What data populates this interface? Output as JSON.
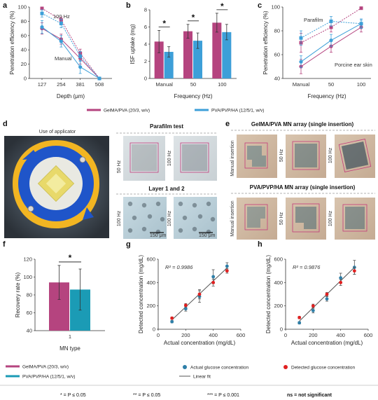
{
  "panels": {
    "a": "a",
    "b": "b",
    "c": "c",
    "d": "d",
    "e": "e",
    "f": "f",
    "g": "g",
    "h": "h"
  },
  "colors": {
    "gelma": "#b5447f",
    "pva": "#3d9fd8",
    "pva_dark": "#1b7fae",
    "blue_point": "#2e7fa8",
    "red_point": "#e02020"
  },
  "legend_top": {
    "gelma": "GelMA/PVA (20/3, w/v)",
    "pva": "PVA/PVP/HA (12/5/1, w/v)"
  },
  "legend_f": {
    "gelma": "GelMA/PVA (20/3, w/v)",
    "pva": "PVA/PVP/HA (12/5/1, w/v)"
  },
  "legend_gh": {
    "actual": "Actual glucose concentration",
    "detected": "Detected glucose concentration",
    "fit": "Linear fit"
  },
  "significance": {
    "one": "* = P ≤ 0.05",
    "two": "** = P ≤ 0.05",
    "three": "*** = P ≤ 0.001",
    "ns": "ns = not significant"
  },
  "photos_d": {
    "applicator_title": "Use of applicator",
    "parafilm_title": "Parafilm test",
    "layer_title": "Layer 1 and 2",
    "p50": "50 Hz",
    "p100": "100 Hz",
    "l100a": "100 Hz",
    "l100b": "100 Hz",
    "scale1": "150 μm",
    "scale2": "150 μm"
  },
  "photos_e": {
    "gelma_title": "GelMA/PVA MN array (single insertion)",
    "pva_title": "PVA/PVP/HA MN array (single insertion)",
    "manual": "Manual insertion",
    "hz50": "50 Hz",
    "hz100": "100 Hz"
  },
  "chart_data": [
    {
      "panel": "a",
      "type": "line",
      "xlabel": "Depth (μm)",
      "ylabel": "Penetration efficiency (%)",
      "x": [
        127,
        254,
        381,
        508
      ],
      "ylim": [
        0,
        100
      ],
      "yticks": [
        0,
        20,
        40,
        60,
        80,
        100
      ],
      "annotations": [
        "100 Hz",
        "Manual"
      ],
      "series": [
        {
          "group": "gelma",
          "mode": "100 Hz",
          "values": [
            98,
            82,
            35,
            0
          ],
          "err": [
            2,
            4,
            6,
            1
          ]
        },
        {
          "group": "gelma",
          "mode": "Manual",
          "values": [
            70,
            55,
            28,
            0
          ],
          "err": [
            8,
            7,
            8,
            1
          ]
        },
        {
          "group": "pva",
          "mode": "100 Hz",
          "values": [
            91,
            77,
            31,
            0
          ],
          "err": [
            5,
            6,
            7,
            1
          ]
        },
        {
          "group": "pva",
          "mode": "Manual",
          "values": [
            72,
            52,
            16,
            0
          ],
          "err": [
            9,
            8,
            9,
            1
          ]
        }
      ]
    },
    {
      "panel": "b",
      "type": "bar",
      "xlabel": "Frequency (Hz)",
      "ylabel": "ISF uptake (mg)",
      "categories": [
        "Manual",
        "50",
        "100"
      ],
      "ylim": [
        0,
        8
      ],
      "yticks": [
        0,
        2,
        4,
        6,
        8
      ],
      "series": [
        {
          "group": "gelma",
          "values": [
            4.3,
            5.5,
            6.5
          ],
          "err": [
            1.3,
            0.8,
            1.1
          ]
        },
        {
          "group": "pva",
          "values": [
            3.1,
            4.4,
            5.4
          ],
          "err": [
            0.6,
            0.9,
            0.9
          ]
        }
      ],
      "significance": [
        "*",
        "*",
        "*"
      ]
    },
    {
      "panel": "c",
      "type": "line",
      "xlabel": "Frequency (Hz)",
      "ylabel": "Penetration efficiency (%)",
      "categories": [
        "Manual",
        "50",
        "100"
      ],
      "ylim": [
        40,
        100
      ],
      "yticks": [
        40,
        60,
        80,
        100
      ],
      "annotations": [
        "Parafilm",
        "Porcine ear skin"
      ],
      "series": [
        {
          "group": "gelma",
          "mode": "Parafilm",
          "values": [
            70,
            83,
            99
          ],
          "err": [
            8,
            4,
            1
          ]
        },
        {
          "group": "gelma",
          "mode": "Porcine ear skin",
          "values": [
            50,
            67,
            83
          ],
          "err": [
            6,
            5,
            4
          ]
        },
        {
          "group": "pva",
          "mode": "Parafilm",
          "values": [
            74,
            88,
            86
          ],
          "err": [
            6,
            4,
            4
          ]
        },
        {
          "group": "pva",
          "mode": "Porcine ear skin",
          "values": [
            54,
            72,
            86
          ],
          "err": [
            5,
            5,
            3
          ]
        }
      ]
    },
    {
      "panel": "f",
      "type": "bar",
      "xlabel": "MN type",
      "ylabel": "Recovery rate (%)",
      "categories": [
        "1"
      ],
      "ylim": [
        40,
        120
      ],
      "yticks": [
        40,
        60,
        80,
        100,
        120
      ],
      "series": [
        {
          "group": "gelma",
          "values": [
            94
          ],
          "err": [
            19
          ]
        },
        {
          "group": "pva",
          "values": [
            86
          ],
          "err": [
            23
          ]
        }
      ],
      "significance": [
        "*"
      ]
    },
    {
      "panel": "g",
      "type": "scatter",
      "xlabel": "Actual concentration (mg/dL)",
      "ylabel": "Detected concentration (mg/dL)",
      "xlim": [
        0,
        600
      ],
      "ylim": [
        0,
        600
      ],
      "xticks": [
        0,
        200,
        400,
        600
      ],
      "yticks": [
        0,
        200,
        400,
        600
      ],
      "r2": "R² = 0.9986",
      "series": [
        {
          "name": "Actual glucose concentration",
          "x": [
            100,
            200,
            300,
            400,
            500
          ],
          "y": [
            65,
            175,
            280,
            450,
            540
          ],
          "err": [
            10,
            20,
            50,
            60,
            30
          ]
        },
        {
          "name": "Detected glucose concentration",
          "x": [
            100,
            200,
            300,
            400,
            500
          ],
          "y": [
            95,
            205,
            300,
            400,
            500
          ],
          "err": [
            10,
            15,
            40,
            30,
            20
          ]
        }
      ],
      "fit": {
        "x": [
          100,
          500
        ],
        "y": [
          80,
          525
        ]
      }
    },
    {
      "panel": "h",
      "type": "scatter",
      "xlabel": "Actual concentration (mg/dL)",
      "ylabel": "Detected concentration (mg/dL)",
      "xlim": [
        0,
        600
      ],
      "ylim": [
        0,
        600
      ],
      "xticks": [
        0,
        200,
        400,
        600
      ],
      "yticks": [
        0,
        200,
        400,
        600
      ],
      "r2": "R² = 0.9876",
      "series": [
        {
          "name": "Actual glucose concentration",
          "x": [
            100,
            200,
            300,
            400,
            500
          ],
          "y": [
            55,
            160,
            260,
            440,
            530
          ],
          "err": [
            10,
            20,
            20,
            40,
            60
          ]
        },
        {
          "name": "Detected glucose concentration",
          "x": [
            100,
            200,
            300,
            400,
            500
          ],
          "y": [
            100,
            200,
            300,
            400,
            500
          ],
          "err": [
            10,
            15,
            15,
            25,
            30
          ]
        }
      ],
      "fit": {
        "x": [
          100,
          500
        ],
        "y": [
          70,
          530
        ]
      }
    }
  ]
}
